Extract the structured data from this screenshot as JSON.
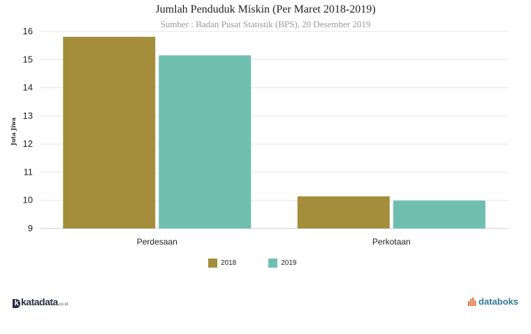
{
  "header": {
    "title": "Jumlah Penduduk Miskin (Per Maret 2018-2019)",
    "subtitle": "Sumber : Badan Pusat Statistik (BPS), 20 Desember 2019"
  },
  "brand": {
    "left_logo": "katadata",
    "left_logo_suffix": ".co.id",
    "right_logo": "databoks"
  },
  "colors": {
    "series_2018": "#a48d3b",
    "series_2019": "#6fbfb0",
    "grid": "#e4e4e4",
    "axis": "#cccccc"
  },
  "chart_data": {
    "type": "bar",
    "title": "Jumlah Penduduk Miskin (Per Maret 2018-2019)",
    "subtitle": "Sumber : Badan Pusat Statistik (BPS), 20 Desember 2019",
    "xlabel": "",
    "ylabel": "Juta Jiwa",
    "ylim": [
      9,
      16
    ],
    "yticks": [
      9,
      10,
      11,
      12,
      13,
      14,
      15,
      16
    ],
    "categories": [
      "Perdesaan",
      "Perkotaan"
    ],
    "series": [
      {
        "name": "2018",
        "values": [
          15.81,
          10.14
        ],
        "color": "#a48d3b"
      },
      {
        "name": "2019",
        "values": [
          15.15,
          9.99
        ],
        "color": "#6fbfb0"
      }
    ],
    "grid": true,
    "legend": "bottom-center"
  }
}
